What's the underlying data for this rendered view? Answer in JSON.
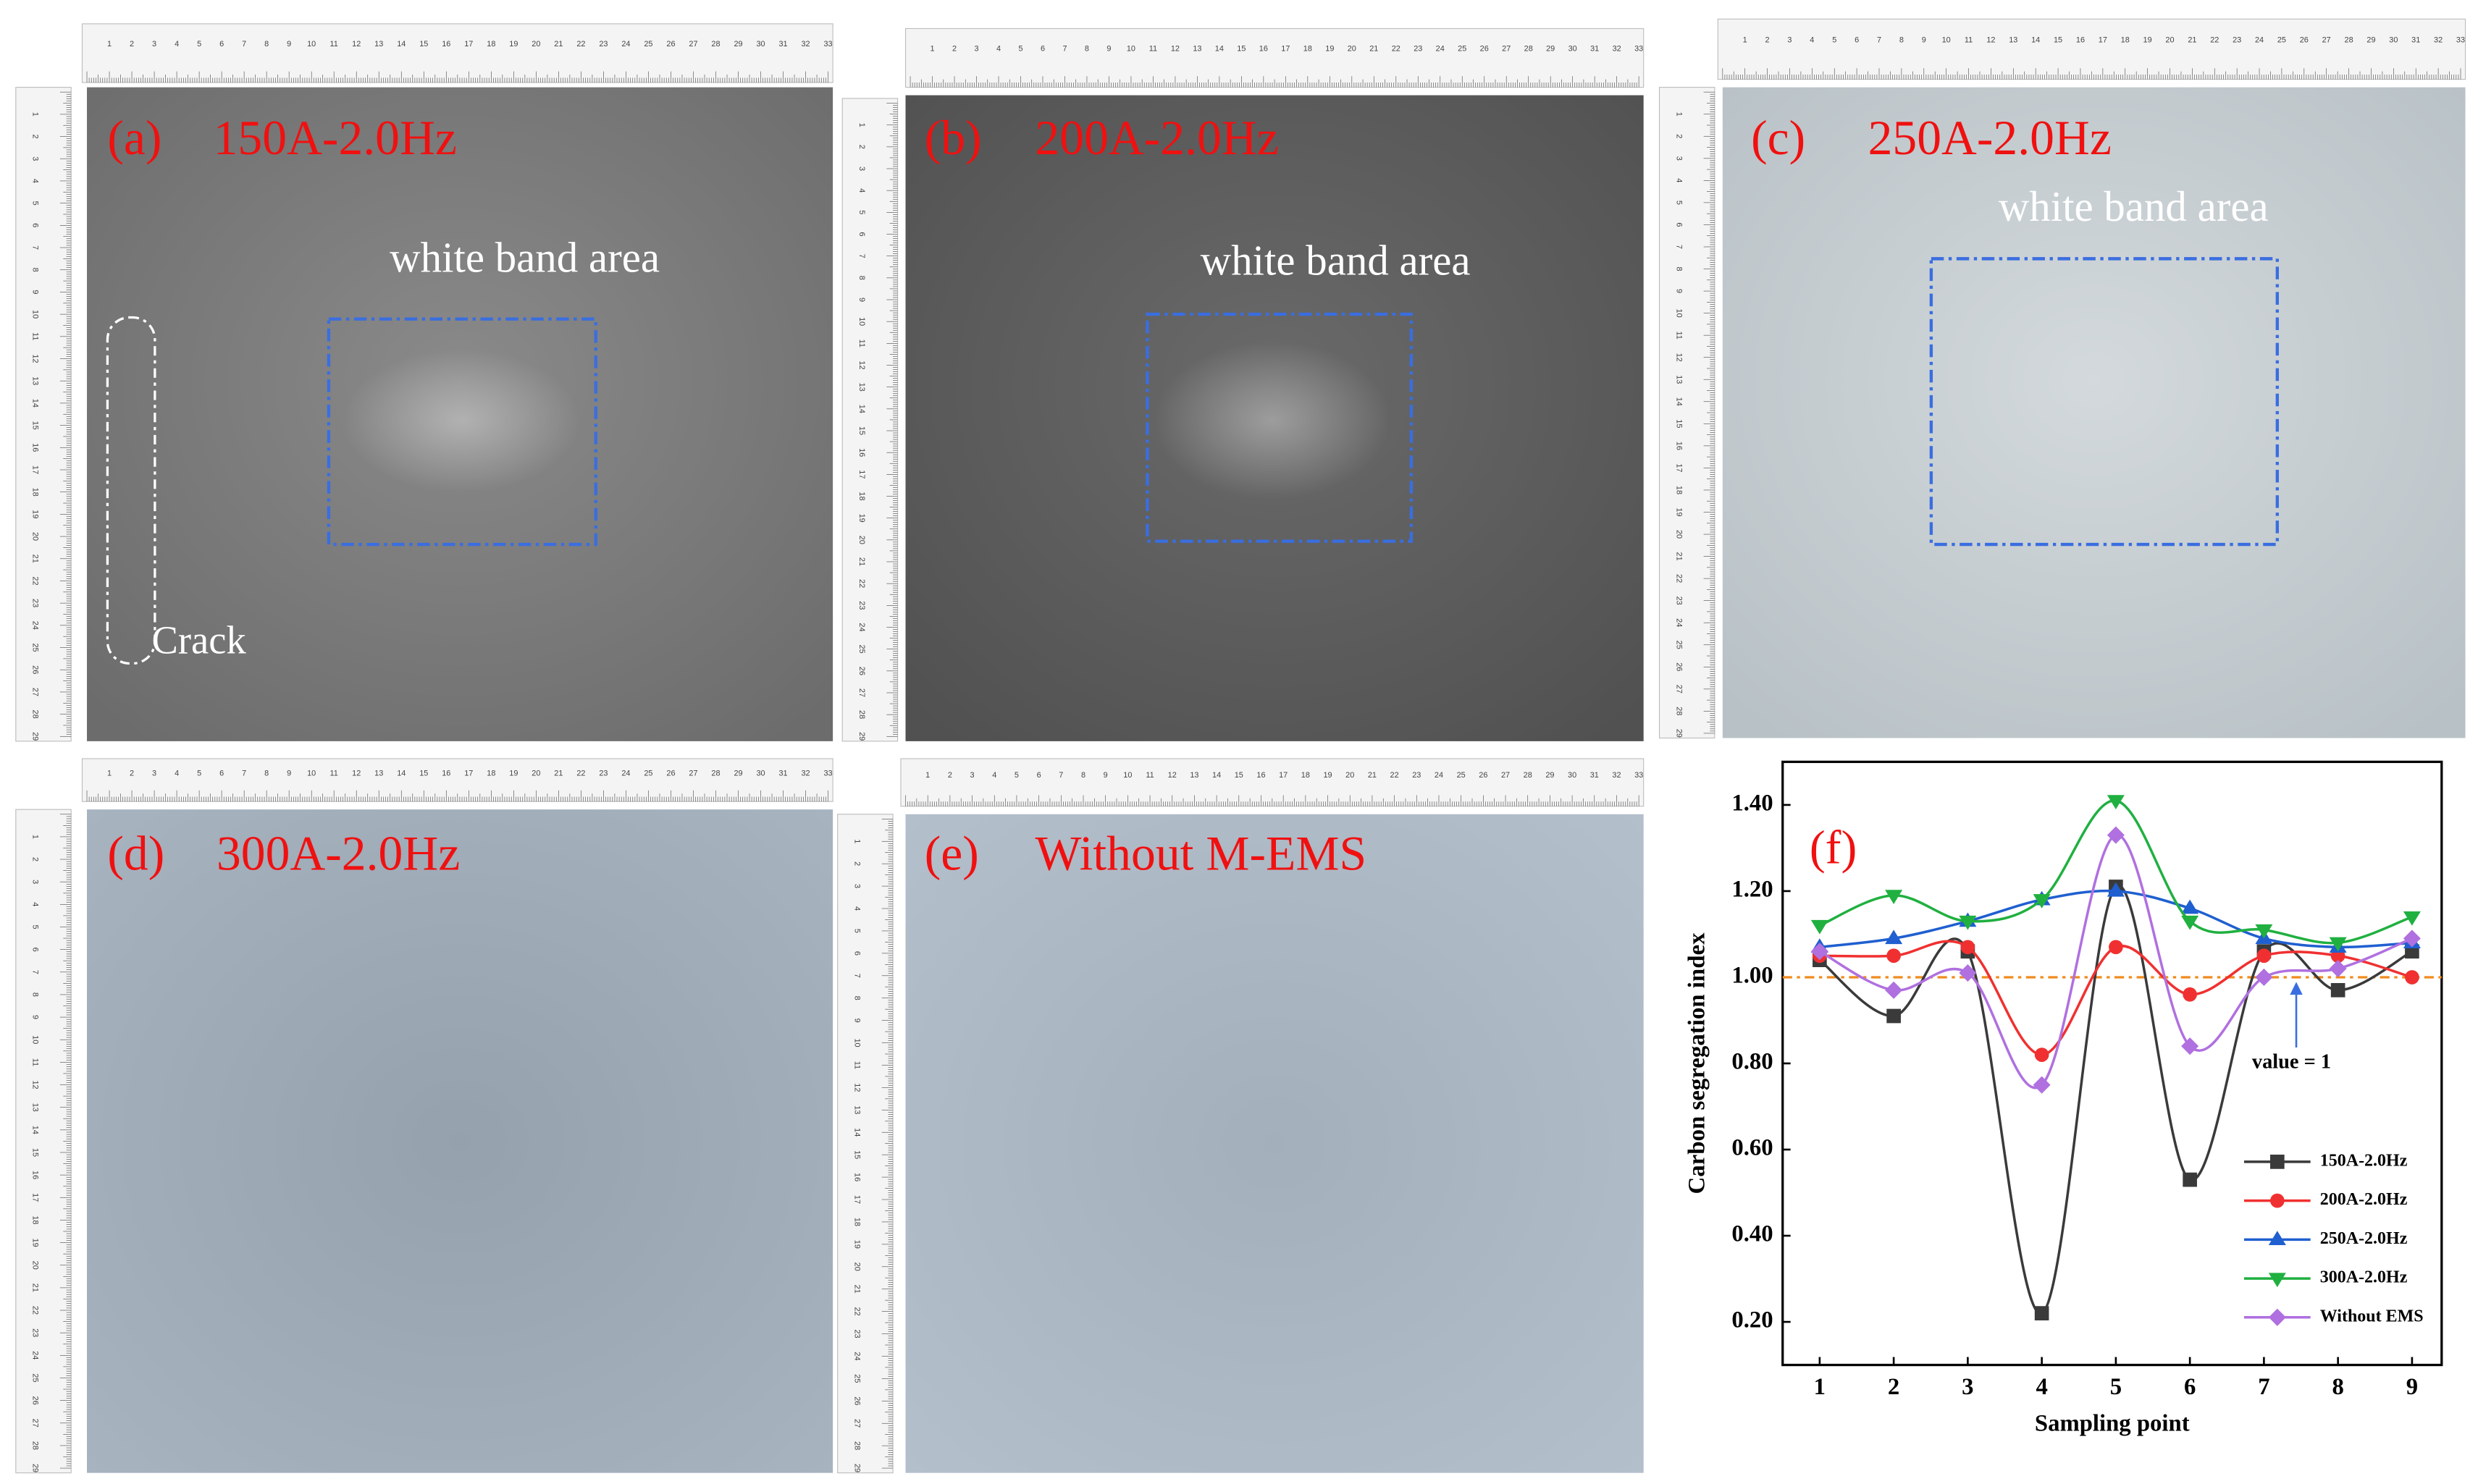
{
  "panels": [
    {
      "label": "(a)",
      "title": "150A-2.0Hz",
      "annotation": "white band area",
      "crack": "Crack"
    },
    {
      "label": "(b)",
      "title": "200A-2.0Hz",
      "annotation": "white band area"
    },
    {
      "label": "(c)",
      "title": "250A-2.0Hz",
      "annotation": "white band area"
    },
    {
      "label": "(d)",
      "title": "300A-2.0Hz"
    },
    {
      "label": "(e)",
      "title": "Without M-EMS"
    }
  ],
  "ruler": {
    "top_numbers": [
      1,
      2,
      3,
      4,
      5,
      6,
      7,
      8,
      9,
      10,
      11,
      12,
      13,
      14,
      15,
      16,
      17,
      18,
      19,
      20,
      21,
      22,
      23,
      24,
      25,
      26,
      27,
      28,
      29,
      30,
      31,
      32,
      33
    ],
    "side_numbers": [
      1,
      2,
      3,
      4,
      5,
      6,
      7,
      8,
      9,
      10,
      11,
      12,
      13,
      14,
      15,
      16,
      17,
      18,
      19,
      20,
      21,
      22,
      23,
      24,
      25,
      26,
      27,
      28,
      29
    ]
  },
  "chart_data": {
    "type": "line",
    "panel_label": "(f)",
    "x_label": "Sampling point",
    "y_label": "Carbon  segregation index",
    "x": [
      1,
      2,
      3,
      4,
      5,
      6,
      7,
      8,
      9
    ],
    "xlim": [
      0.5,
      9.4
    ],
    "xticks": [
      1,
      2,
      3,
      4,
      5,
      6,
      7,
      8,
      9
    ],
    "ylim": [
      0.1,
      1.5
    ],
    "yticks": [
      {
        "value": 0.2,
        "label": "0.20"
      },
      {
        "value": 0.4,
        "label": "0.40"
      },
      {
        "value": 0.6,
        "label": "0.60"
      },
      {
        "value": 0.8,
        "label": "0.80"
      },
      {
        "value": 1.0,
        "label": "1.00"
      },
      {
        "value": 1.2,
        "label": "1.20"
      },
      {
        "value": 1.4,
        "label": "1.40"
      }
    ],
    "reference_line": {
      "value": 1,
      "label": "value = 1",
      "color": "#f08a1c"
    },
    "series": [
      {
        "name": "150A-2.0Hz",
        "color": "#3a3a3a",
        "marker": "square",
        "values": [
          1.04,
          0.91,
          1.06,
          0.22,
          1.21,
          0.53,
          1.06,
          0.97,
          1.06
        ]
      },
      {
        "name": "200A-2.0Hz",
        "color": "#f03030",
        "marker": "circle",
        "values": [
          1.05,
          1.05,
          1.07,
          0.82,
          1.07,
          0.96,
          1.05,
          1.05,
          1.0
        ]
      },
      {
        "name": "250A-2.0Hz",
        "color": "#1f5fd0",
        "marker": "triangle-up",
        "values": [
          1.07,
          1.09,
          1.13,
          1.18,
          1.2,
          1.16,
          1.09,
          1.07,
          1.08
        ]
      },
      {
        "name": "300A-2.0Hz",
        "color": "#20b040",
        "marker": "triangle-down",
        "values": [
          1.12,
          1.19,
          1.13,
          1.18,
          1.41,
          1.13,
          1.11,
          1.08,
          1.14
        ]
      },
      {
        "name": "Without EMS",
        "color": "#b070e0",
        "marker": "diamond",
        "values": [
          1.06,
          0.97,
          1.01,
          0.75,
          1.33,
          0.84,
          1.0,
          1.02,
          1.09
        ]
      }
    ]
  }
}
